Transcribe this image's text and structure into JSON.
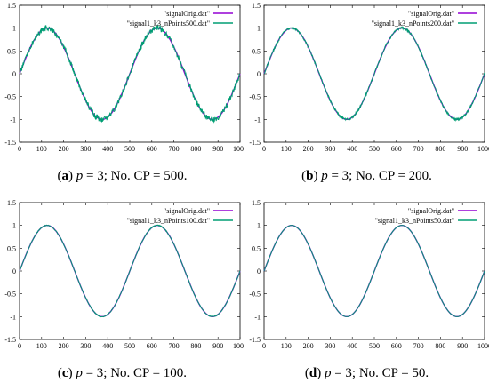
{
  "figure": {
    "panels": [
      {
        "caption": {
          "letter": "a",
          "p_symbol": "p",
          "rest": " = 3; No. CP = 500."
        },
        "chart_data": {
          "type": "line",
          "xlim": [
            0,
            1000
          ],
          "ylim": [
            -1.5,
            1.5
          ],
          "xticks": [
            0,
            100,
            200,
            300,
            400,
            500,
            600,
            700,
            800,
            900,
            1000
          ],
          "yticks": [
            -1.5,
            -1,
            -0.5,
            0,
            0.5,
            1,
            1.5
          ],
          "grid": false,
          "legend_position": "top-right",
          "series": [
            {
              "name": "\"signalOrig.dat\"",
              "color": "#9400d3",
              "function": "sin(2*pi*x/500)",
              "noise_amplitude": 0
            },
            {
              "name": "\"signal1_k3_nPoints500.dat\"",
              "color": "#009e73",
              "function": "sin(2*pi*x/500)",
              "noise_amplitude": 0.06
            }
          ]
        }
      },
      {
        "caption": {
          "letter": "b",
          "p_symbol": "p",
          "rest": " = 3; No. CP = 200."
        },
        "chart_data": {
          "type": "line",
          "xlim": [
            0,
            1000
          ],
          "ylim": [
            -1.5,
            1.5
          ],
          "xticks": [
            0,
            100,
            200,
            300,
            400,
            500,
            600,
            700,
            800,
            900,
            1000
          ],
          "yticks": [
            -1.5,
            -1,
            -0.5,
            0,
            0.5,
            1,
            1.5
          ],
          "grid": false,
          "legend_position": "top-right",
          "series": [
            {
              "name": "\"signalOrig.dat\"",
              "color": "#9400d3",
              "function": "sin(2*pi*x/500)",
              "noise_amplitude": 0
            },
            {
              "name": "\"signal1_k3_nPoints200.dat\"",
              "color": "#009e73",
              "function": "sin(2*pi*x/500)",
              "noise_amplitude": 0.025
            }
          ]
        }
      },
      {
        "caption": {
          "letter": "c",
          "p_symbol": "p",
          "rest": " = 3; No. CP = 100."
        },
        "chart_data": {
          "type": "line",
          "xlim": [
            0,
            1000
          ],
          "ylim": [
            -1.5,
            1.5
          ],
          "xticks": [
            0,
            100,
            200,
            300,
            400,
            500,
            600,
            700,
            800,
            900,
            1000
          ],
          "yticks": [
            -1.5,
            -1,
            -0.5,
            0,
            0.5,
            1,
            1.5
          ],
          "grid": false,
          "legend_position": "top-right",
          "series": [
            {
              "name": "\"signalOrig.dat\"",
              "color": "#9400d3",
              "function": "sin(2*pi*x/500)",
              "noise_amplitude": 0
            },
            {
              "name": "\"signal1_k3_nPoints100.dat\"",
              "color": "#009e73",
              "function": "sin(2*pi*x/500)",
              "noise_amplitude": 0.01
            }
          ]
        }
      },
      {
        "caption": {
          "letter": "d",
          "p_symbol": "p",
          "rest": " = 3; No. CP = 50."
        },
        "chart_data": {
          "type": "line",
          "xlim": [
            0,
            1000
          ],
          "ylim": [
            -1.5,
            1.5
          ],
          "xticks": [
            0,
            100,
            200,
            300,
            400,
            500,
            600,
            700,
            800,
            900,
            1000
          ],
          "yticks": [
            -1.5,
            -1,
            -0.5,
            0,
            0.5,
            1,
            1.5
          ],
          "grid": false,
          "legend_position": "top-right",
          "series": [
            {
              "name": "\"signalOrig.dat\"",
              "color": "#9400d3",
              "function": "sin(2*pi*x/500)",
              "noise_amplitude": 0
            },
            {
              "name": "\"signal1_k3_nPoints50.dat\"",
              "color": "#009e73",
              "function": "sin(2*pi*x/500)",
              "noise_amplitude": 0
            }
          ]
        }
      }
    ]
  }
}
